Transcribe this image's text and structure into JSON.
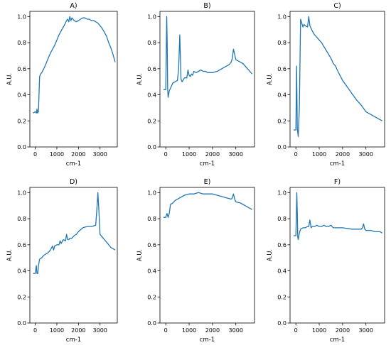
{
  "chart_data": [
    {
      "type": "line",
      "title": "A)",
      "xlabel": "cm-1",
      "ylabel": "A.U.",
      "xlim": [
        -250,
        3800
      ],
      "ylim": [
        0.0,
        1.04
      ],
      "xticks": [
        0,
        1000,
        2000,
        3000
      ],
      "yticks": [
        0.0,
        0.2,
        0.4,
        0.6,
        0.8,
        1.0
      ],
      "color": "#1f77b4",
      "grid": false,
      "x": [
        -100,
        0,
        50,
        80,
        110,
        150,
        200,
        250,
        300,
        400,
        500,
        600,
        700,
        800,
        900,
        1000,
        1100,
        1200,
        1300,
        1400,
        1450,
        1500,
        1550,
        1600,
        1650,
        1700,
        1800,
        1900,
        2000,
        2100,
        2200,
        2300,
        2400,
        2500,
        2600,
        2700,
        2800,
        2900,
        3000,
        3100,
        3200,
        3300,
        3400,
        3500,
        3600,
        3700
      ],
      "y": [
        0.26,
        0.27,
        0.26,
        0.29,
        0.26,
        0.27,
        0.54,
        0.56,
        0.57,
        0.6,
        0.64,
        0.68,
        0.72,
        0.75,
        0.78,
        0.82,
        0.86,
        0.89,
        0.92,
        0.95,
        0.97,
        0.98,
        0.96,
        1.0,
        0.97,
        0.99,
        0.97,
        0.96,
        0.97,
        0.98,
        0.99,
        0.99,
        0.98,
        0.98,
        0.97,
        0.97,
        0.96,
        0.95,
        0.93,
        0.91,
        0.88,
        0.85,
        0.8,
        0.76,
        0.71,
        0.65
      ]
    },
    {
      "type": "line",
      "title": "B)",
      "xlabel": "cm-1",
      "ylabel": "A.U.",
      "xlim": [
        -250,
        3800
      ],
      "ylim": [
        0.0,
        1.04
      ],
      "xticks": [
        0,
        1000,
        2000,
        3000
      ],
      "yticks": [
        0.0,
        0.2,
        0.4,
        0.6,
        0.8,
        1.0
      ],
      "color": "#1f77b4",
      "grid": false,
      "x": [
        -100,
        0,
        40,
        60,
        80,
        100,
        150,
        200,
        300,
        400,
        500,
        550,
        600,
        650,
        700,
        800,
        900,
        950,
        1000,
        1050,
        1100,
        1150,
        1200,
        1300,
        1400,
        1500,
        1600,
        1700,
        1800,
        2000,
        2200,
        2400,
        2600,
        2700,
        2800,
        2850,
        2900,
        2950,
        3000,
        3100,
        3200,
        3300,
        3400,
        3500,
        3600,
        3700
      ],
      "y": [
        0.44,
        0.44,
        1.0,
        0.8,
        0.45,
        0.38,
        0.43,
        0.45,
        0.49,
        0.5,
        0.51,
        0.6,
        0.86,
        0.52,
        0.5,
        0.53,
        0.53,
        0.59,
        0.55,
        0.54,
        0.56,
        0.55,
        0.58,
        0.57,
        0.58,
        0.59,
        0.58,
        0.58,
        0.57,
        0.57,
        0.58,
        0.6,
        0.62,
        0.63,
        0.65,
        0.68,
        0.75,
        0.71,
        0.67,
        0.66,
        0.65,
        0.64,
        0.62,
        0.6,
        0.58,
        0.56
      ]
    },
    {
      "type": "line",
      "title": "C)",
      "xlabel": "cm-1",
      "ylabel": "A.U.",
      "xlim": [
        -250,
        3800
      ],
      "ylim": [
        0.0,
        1.04
      ],
      "xticks": [
        0,
        1000,
        2000,
        3000
      ],
      "yticks": [
        0.0,
        0.2,
        0.4,
        0.6,
        0.8,
        1.0
      ],
      "color": "#1f77b4",
      "grid": false,
      "x": [
        -100,
        0,
        30,
        60,
        100,
        150,
        200,
        300,
        350,
        400,
        500,
        550,
        600,
        700,
        800,
        900,
        1000,
        1100,
        1200,
        1300,
        1400,
        1500,
        1600,
        1700,
        1800,
        2000,
        2200,
        2400,
        2600,
        2800,
        3000,
        3200,
        3400,
        3600,
        3700
      ],
      "y": [
        0.13,
        0.13,
        0.62,
        0.14,
        0.08,
        0.3,
        0.98,
        0.92,
        0.94,
        0.93,
        0.92,
        1.0,
        0.93,
        0.89,
        0.86,
        0.84,
        0.82,
        0.8,
        0.77,
        0.74,
        0.71,
        0.68,
        0.64,
        0.62,
        0.58,
        0.51,
        0.46,
        0.41,
        0.36,
        0.32,
        0.27,
        0.25,
        0.23,
        0.21,
        0.2
      ]
    },
    {
      "type": "line",
      "title": "D)",
      "xlabel": "cm-1",
      "ylabel": "A.U.",
      "xlim": [
        -250,
        3800
      ],
      "ylim": [
        0.0,
        1.04
      ],
      "xticks": [
        0,
        1000,
        2000,
        3000
      ],
      "yticks": [
        0.0,
        0.2,
        0.4,
        0.6,
        0.8,
        1.0
      ],
      "color": "#1f77b4",
      "grid": false,
      "x": [
        -100,
        0,
        50,
        80,
        120,
        150,
        200,
        300,
        400,
        500,
        600,
        700,
        800,
        850,
        900,
        1000,
        1100,
        1150,
        1200,
        1300,
        1400,
        1450,
        1500,
        1550,
        1600,
        1700,
        1800,
        1900,
        2000,
        2200,
        2400,
        2600,
        2800,
        2850,
        2900,
        2950,
        3000,
        3100,
        3200,
        3300,
        3400,
        3500,
        3600,
        3700
      ],
      "y": [
        0.38,
        0.38,
        0.44,
        0.38,
        0.38,
        0.44,
        0.49,
        0.5,
        0.52,
        0.53,
        0.54,
        0.56,
        0.59,
        0.56,
        0.59,
        0.6,
        0.6,
        0.63,
        0.61,
        0.64,
        0.63,
        0.68,
        0.64,
        0.64,
        0.65,
        0.65,
        0.67,
        0.68,
        0.7,
        0.73,
        0.74,
        0.74,
        0.75,
        0.86,
        1.0,
        0.85,
        0.68,
        0.66,
        0.64,
        0.62,
        0.6,
        0.58,
        0.57,
        0.56
      ]
    },
    {
      "type": "line",
      "title": "E)",
      "xlabel": "cm-1",
      "ylabel": "A.U.",
      "xlim": [
        -250,
        3800
      ],
      "ylim": [
        0.0,
        1.04
      ],
      "xticks": [
        0,
        1000,
        2000,
        3000
      ],
      "yticks": [
        0.0,
        0.2,
        0.4,
        0.6,
        0.8,
        1.0
      ],
      "color": "#1f77b4",
      "grid": false,
      "x": [
        -100,
        0,
        50,
        100,
        150,
        200,
        300,
        400,
        600,
        800,
        1000,
        1200,
        1400,
        1600,
        1800,
        2000,
        2200,
        2400,
        2600,
        2800,
        2850,
        2900,
        2950,
        3000,
        3200,
        3400,
        3600,
        3700
      ],
      "y": [
        0.81,
        0.81,
        0.84,
        0.81,
        0.84,
        0.91,
        0.92,
        0.94,
        0.96,
        0.98,
        0.99,
        0.99,
        1.0,
        0.99,
        0.99,
        0.99,
        0.98,
        0.97,
        0.96,
        0.95,
        0.96,
        0.99,
        0.95,
        0.93,
        0.92,
        0.9,
        0.88,
        0.87
      ]
    },
    {
      "type": "line",
      "title": "F)",
      "xlabel": "cm-1",
      "ylabel": "A.U.",
      "xlim": [
        -250,
        3800
      ],
      "ylim": [
        0.0,
        1.04
      ],
      "xticks": [
        0,
        1000,
        2000,
        3000
      ],
      "yticks": [
        0.0,
        0.2,
        0.4,
        0.6,
        0.8,
        1.0
      ],
      "color": "#1f77b4",
      "grid": false,
      "x": [
        -100,
        0,
        40,
        60,
        80,
        100,
        150,
        200,
        300,
        400,
        500,
        550,
        600,
        650,
        700,
        800,
        900,
        1000,
        1100,
        1200,
        1300,
        1400,
        1500,
        1600,
        2000,
        2400,
        2800,
        2850,
        2900,
        2950,
        3000,
        3200,
        3400,
        3600,
        3700
      ],
      "y": [
        0.67,
        0.67,
        1.0,
        0.85,
        0.66,
        0.64,
        0.69,
        0.72,
        0.73,
        0.73,
        0.74,
        0.74,
        0.79,
        0.73,
        0.74,
        0.74,
        0.75,
        0.74,
        0.74,
        0.75,
        0.74,
        0.74,
        0.75,
        0.73,
        0.73,
        0.72,
        0.72,
        0.73,
        0.76,
        0.72,
        0.71,
        0.71,
        0.7,
        0.7,
        0.69
      ]
    }
  ]
}
